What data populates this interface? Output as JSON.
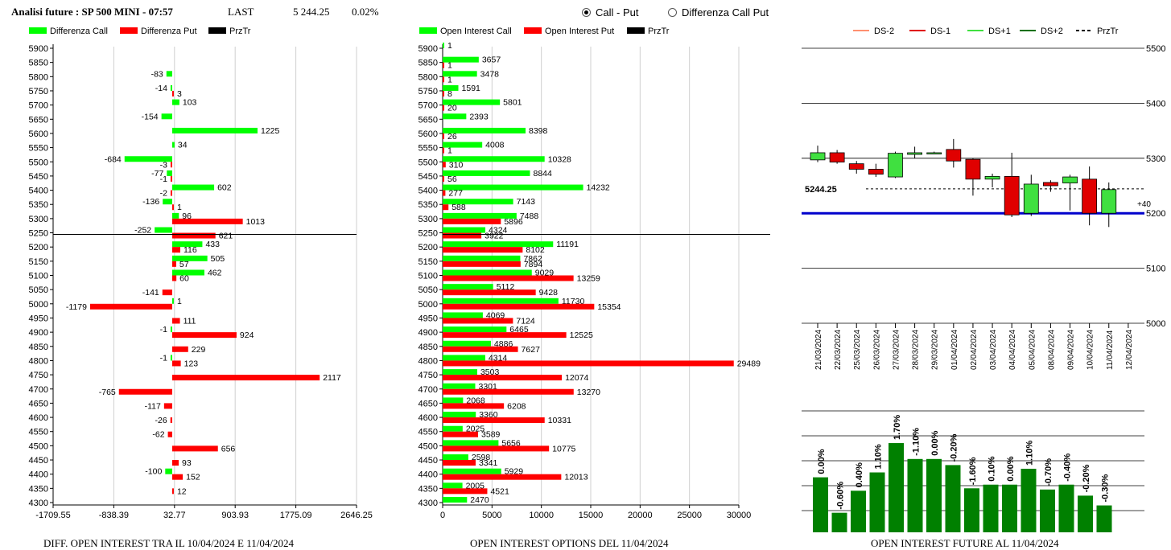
{
  "header": {
    "title": "Analisi future : SP 500 MINI - 07:57",
    "last_label": "LAST",
    "last_value": "5 244.25",
    "change": "0.02%"
  },
  "radios": [
    {
      "label": "Call - Put",
      "selected": true
    },
    {
      "label": "Differenza Call Put",
      "selected": false
    }
  ],
  "colors": {
    "call": "#00ff00",
    "put": "#ff0000",
    "przTr": "#000000",
    "ds_minus2": "#ff9070",
    "ds_minus1": "#e00000",
    "ds_plus1": "#40e040",
    "ds_plus2": "#007000",
    "bar_future": "#008000",
    "support_line": "#0000cc"
  },
  "footers": {
    "left": "DIFF. OPEN INTEREST TRA IL 10/04/2024 E 11/04/2024",
    "middle": "OPEN INTEREST OPTIONS DEL 11/04/2024",
    "right": "OPEN INTEREST FUTURE AL 11/04/2024"
  },
  "chart_data": [
    {
      "type": "bar",
      "orientation": "horizontal",
      "legend": [
        "Differenza Call",
        "Differenza Put",
        "PrzTr"
      ],
      "strikes": [
        5900,
        5850,
        5800,
        5750,
        5700,
        5650,
        5600,
        5550,
        5500,
        5450,
        5400,
        5350,
        5300,
        5250,
        5200,
        5150,
        5100,
        5050,
        5000,
        4950,
        4900,
        4850,
        4800,
        4750,
        4700,
        4650,
        4600,
        4550,
        4500,
        4450,
        4400,
        4350,
        4300
      ],
      "series": [
        {
          "name": "Differenza Call",
          "values": [
            null,
            null,
            -83,
            -14,
            103,
            -154,
            1225,
            34,
            -684,
            -77,
            602,
            -136,
            96,
            -252,
            433,
            505,
            462,
            null,
            1,
            null,
            -1,
            null,
            -1,
            null,
            null,
            null,
            null,
            null,
            null,
            null,
            -100,
            null,
            null
          ]
        },
        {
          "name": "Differenza Put",
          "values": [
            null,
            null,
            null,
            3,
            null,
            null,
            null,
            null,
            -3,
            -1,
            -2,
            1,
            1013,
            621,
            116,
            57,
            60,
            -141,
            -1179,
            111,
            924,
            229,
            123,
            2117,
            -765,
            -117,
            -26,
            -62,
            656,
            93,
            152,
            12,
            null
          ]
        }
      ],
      "przTr": 5244.25,
      "x_ticks": [
        "-1709.55",
        "-838.39",
        "32.77",
        "903.93",
        "1775.09",
        "2646.25"
      ],
      "xlim": [
        -1709.55,
        2646.25
      ],
      "ylim": [
        4300,
        5900
      ]
    },
    {
      "type": "bar",
      "orientation": "horizontal",
      "legend": [
        "Open Interest Call",
        "Open Interest Put",
        "PrzTr"
      ],
      "strikes": [
        5900,
        5850,
        5800,
        5750,
        5700,
        5650,
        5600,
        5550,
        5500,
        5450,
        5400,
        5350,
        5300,
        5250,
        5200,
        5150,
        5100,
        5050,
        5000,
        4950,
        4900,
        4850,
        4800,
        4750,
        4700,
        4650,
        4600,
        4550,
        4500,
        4450,
        4400,
        4350,
        4300
      ],
      "series": [
        {
          "name": "Open Interest Call",
          "values": [
            1,
            3657,
            3478,
            1591,
            5801,
            2393,
            8398,
            4008,
            10328,
            8844,
            14232,
            7143,
            7488,
            4324,
            11191,
            7862,
            9029,
            5112,
            11730,
            4069,
            6465,
            4886,
            4314,
            3503,
            3301,
            2068,
            3360,
            2025,
            5656,
            2598,
            5929,
            2005,
            2470
          ]
        },
        {
          "name": "Open Interest Put",
          "values": [
            null,
            1,
            1,
            8,
            20,
            null,
            26,
            1,
            310,
            56,
            277,
            588,
            5896,
            3922,
            8102,
            7894,
            13259,
            9428,
            15354,
            7124,
            12525,
            7627,
            29489,
            12074,
            13270,
            6208,
            10331,
            3589,
            10775,
            3341,
            12013,
            4521,
            null
          ]
        }
      ],
      "przTr": 5244.25,
      "x_ticks": [
        "0",
        "5000",
        "10000",
        "15000",
        "20000",
        "25000",
        "30000"
      ],
      "xlim": [
        0,
        30000
      ],
      "ylim": [
        4300,
        5900
      ]
    },
    {
      "type": "candlestick",
      "legend": [
        "DS-2",
        "DS-1",
        "DS+1",
        "DS+2",
        "PrzTr"
      ],
      "dates": [
        "21/03/2024",
        "22/03/2024",
        "25/03/2024",
        "26/03/2024",
        "27/03/2024",
        "28/03/2024",
        "29/03/2024",
        "01/04/2024",
        "02/04/2024",
        "03/04/2024",
        "04/04/2024",
        "05/04/2024",
        "08/04/2024",
        "09/04/2024",
        "10/04/2024",
        "11/04/2024",
        "12/04/2024"
      ],
      "candles": [
        {
          "o": 5297,
          "c": 5310,
          "h": 5323,
          "l": 5293
        },
        {
          "o": 5310,
          "c": 5293,
          "h": 5315,
          "l": 5290
        },
        {
          "o": 5290,
          "c": 5280,
          "h": 5295,
          "l": 5272
        },
        {
          "o": 5280,
          "c": 5271,
          "h": 5290,
          "l": 5266
        },
        {
          "o": 5266,
          "c": 5309,
          "h": 5312,
          "l": 5264
        },
        {
          "o": 5307,
          "c": 5310,
          "h": 5321,
          "l": 5300
        },
        {
          "o": 5310,
          "c": 5310,
          "h": 5312,
          "l": 5309
        },
        {
          "o": 5316,
          "c": 5295,
          "h": 5335,
          "l": 5283
        },
        {
          "o": 5298,
          "c": 5262,
          "h": 5300,
          "l": 5232
        },
        {
          "o": 5262,
          "c": 5267,
          "h": 5272,
          "l": 5247
        },
        {
          "o": 5267,
          "c": 5197,
          "h": 5310,
          "l": 5193
        },
        {
          "o": 5200,
          "c": 5253,
          "h": 5270,
          "l": 5195
        },
        {
          "o": 5256,
          "c": 5250,
          "h": 5260,
          "l": 5239
        },
        {
          "o": 5255,
          "c": 5266,
          "h": 5270,
          "l": 5205
        },
        {
          "o": 5262,
          "c": 5200,
          "h": 5285,
          "l": 5178
        },
        {
          "o": 5200,
          "c": 5243,
          "h": 5256,
          "l": 5175
        },
        null
      ],
      "price_label": "5244.25",
      "przTr": 5244.25,
      "support_level": 5200,
      "support_label": "+40",
      "y_ticks": [
        "5500",
        "5400",
        "5300",
        "5200",
        "5100",
        "5000"
      ],
      "ylim": [
        5000,
        5500
      ]
    },
    {
      "type": "bar",
      "values": [
        4.5,
        1.6,
        3.4,
        4.9,
        7.3,
        6.0,
        6.0,
        5.5,
        3.6,
        3.9,
        3.9,
        5.2,
        3.5,
        3.9,
        3.0,
        2.2
      ],
      "value_labels": [
        "0.00%",
        "-0.60%",
        "0.40%",
        "1.10%",
        "1.70%",
        "-1.10%",
        "0.00%",
        "-0.20%",
        "-1.60%",
        "0.10%",
        "0.00%",
        "1.10%",
        "-0.70%",
        "-0.40%",
        "-0.20%",
        "-0.30%"
      ],
      "ylim": [
        0,
        10
      ]
    }
  ]
}
